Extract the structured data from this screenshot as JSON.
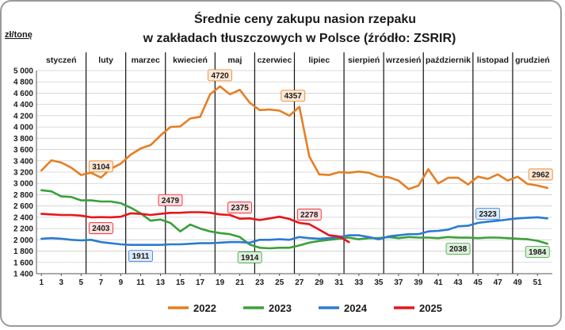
{
  "chart_data": {
    "type": "line",
    "title_line1": "Średnie ceny zakupu nasion rzepaku",
    "title_line2": "w zakładach tłuszczowych w Polsce  (źródło: ZSRIR)",
    "ylabel": "zł/tonę",
    "xlabel": "",
    "ylim": [
      1400,
      5000
    ],
    "yticks": [
      "1 400",
      "1 600",
      "1 800",
      "2 000",
      "2 200",
      "2 400",
      "2 600",
      "2 800",
      "3 000",
      "3 200",
      "3 400",
      "3 600",
      "3 800",
      "4 000",
      "4 200",
      "4 400",
      "4 600",
      "4 800",
      "5 000"
    ],
    "xlim": [
      1,
      53
    ],
    "xticks": [
      "1",
      "3",
      "5",
      "7",
      "9",
      "11",
      "13",
      "15",
      "17",
      "19",
      "21",
      "23",
      "25",
      "27",
      "29",
      "31",
      "33",
      "35",
      "37",
      "39",
      "41",
      "43",
      "45",
      "47",
      "49",
      "51"
    ],
    "months": [
      "styczeń",
      "luty",
      "marzec",
      "kwiecień",
      "maj",
      "czerwiec",
      "lipiec",
      "sierpień",
      "wrzesień",
      "październik",
      "listopad",
      "grudzień"
    ],
    "month_boundaries_week": [
      5,
      9,
      13,
      18,
      22,
      26,
      31,
      35,
      39,
      44,
      48
    ],
    "grid": true,
    "legend_position": "bottom",
    "series": [
      {
        "name": "2022",
        "color": "#e67e22",
        "x": [
          1,
          2,
          3,
          4,
          5,
          6,
          7,
          8,
          9,
          10,
          11,
          12,
          13,
          14,
          15,
          16,
          17,
          18,
          19,
          20,
          21,
          22,
          23,
          24,
          25,
          26,
          27,
          28,
          29,
          30,
          31,
          32,
          33,
          34,
          35,
          36,
          37,
          38,
          39,
          40,
          41,
          42,
          43,
          44,
          45,
          46,
          47,
          48,
          49,
          50,
          51,
          52
        ],
        "values": [
          3230,
          3410,
          3370,
          3280,
          3150,
          3190,
          3104,
          3260,
          3350,
          3510,
          3620,
          3680,
          3850,
          4000,
          4010,
          4150,
          4180,
          4580,
          4720,
          4580,
          4660,
          4430,
          4300,
          4310,
          4290,
          4200,
          4357,
          3480,
          3160,
          3150,
          3200,
          3190,
          3210,
          3190,
          3120,
          3110,
          3050,
          2900,
          2960,
          3250,
          3000,
          3100,
          3100,
          2980,
          3120,
          3080,
          3160,
          3050,
          3120,
          2990,
          2962,
          2920
        ]
      },
      {
        "name": "2023",
        "color": "#3aa03a",
        "x": [
          1,
          2,
          3,
          4,
          5,
          6,
          7,
          8,
          9,
          10,
          11,
          12,
          13,
          14,
          15,
          16,
          17,
          18,
          19,
          20,
          21,
          22,
          23,
          24,
          25,
          26,
          27,
          28,
          29,
          30,
          31,
          32,
          33,
          34,
          35,
          36,
          37,
          38,
          39,
          40,
          41,
          42,
          43,
          44,
          45,
          46,
          47,
          48,
          49,
          50,
          51,
          52
        ],
        "values": [
          2880,
          2860,
          2770,
          2760,
          2700,
          2700,
          2680,
          2680,
          2650,
          2570,
          2470,
          2340,
          2360,
          2300,
          2150,
          2270,
          2200,
          2150,
          2120,
          2100,
          2050,
          1914,
          1860,
          1850,
          1860,
          1860,
          1900,
          1950,
          1980,
          2000,
          2020,
          2040,
          2010,
          2030,
          2030,
          2050,
          2030,
          2050,
          2040,
          2040,
          2030,
          2050,
          2038,
          2040,
          2030,
          2040,
          2040,
          2030,
          2020,
          2010,
          1984,
          1930
        ]
      },
      {
        "name": "2024",
        "color": "#2b7bd1",
        "x": [
          1,
          2,
          3,
          4,
          5,
          6,
          7,
          8,
          9,
          10,
          11,
          12,
          13,
          14,
          15,
          16,
          17,
          18,
          19,
          20,
          21,
          22,
          23,
          24,
          25,
          26,
          27,
          28,
          29,
          30,
          31,
          32,
          33,
          34,
          35,
          36,
          37,
          38,
          39,
          40,
          41,
          42,
          43,
          44,
          45,
          46,
          47,
          48,
          49,
          50,
          51,
          52
        ],
        "values": [
          2020,
          2030,
          2020,
          2000,
          1990,
          2000,
          1960,
          1940,
          1920,
          1910,
          1911,
          1910,
          1910,
          1920,
          1920,
          1930,
          1940,
          1940,
          1950,
          1960,
          1960,
          1950,
          2000,
          2000,
          2010,
          2000,
          2050,
          2030,
          2020,
          2030,
          2050,
          2080,
          2080,
          2050,
          2010,
          2060,
          2080,
          2100,
          2100,
          2150,
          2160,
          2180,
          2240,
          2250,
          2300,
          2323,
          2340,
          2360,
          2380,
          2390,
          2400,
          2380
        ]
      },
      {
        "name": "2025",
        "color": "#e8141b",
        "x": [
          1,
          2,
          3,
          4,
          5,
          6,
          7,
          8,
          9,
          10,
          11,
          12,
          13,
          14,
          15,
          16,
          17,
          18,
          19,
          20,
          21,
          22,
          23,
          24,
          25,
          26,
          27,
          28,
          29,
          30,
          31,
          32
        ],
        "values": [
          2460,
          2450,
          2440,
          2440,
          2430,
          2400,
          2403,
          2400,
          2410,
          2470,
          2460,
          2440,
          2460,
          2479,
          2480,
          2490,
          2490,
          2480,
          2450,
          2440,
          2375,
          2380,
          2350,
          2380,
          2410,
          2370,
          2300,
          2278,
          2180,
          2080,
          2060,
          1960
        ]
      }
    ],
    "data_labels": [
      {
        "text": "3104",
        "series": "2022",
        "x": 7,
        "y": 3104
      },
      {
        "text": "4720",
        "series": "2022",
        "x": 19,
        "y": 4720
      },
      {
        "text": "4357",
        "series": "2022",
        "x": 27,
        "y": 4357
      },
      {
        "text": "2962",
        "series": "2022",
        "x": 51,
        "y": 2962
      },
      {
        "text": "2479",
        "series": "2025",
        "x": 14,
        "y": 2479
      },
      {
        "text": "2375",
        "series": "2025",
        "x": 21,
        "y": 2375
      },
      {
        "text": "2278",
        "series": "2025",
        "x": 28,
        "y": 2278
      },
      {
        "text": "2403",
        "series": "2025",
        "x": 7,
        "y": 2403
      },
      {
        "text": "1911",
        "series": "2024",
        "x": 11,
        "y": 1911
      },
      {
        "text": "2323",
        "series": "2024",
        "x": 46,
        "y": 2323
      },
      {
        "text": "1914",
        "series": "2023",
        "x": 22,
        "y": 1914
      },
      {
        "text": "2038",
        "series": "2023",
        "x": 43,
        "y": 2038
      },
      {
        "text": "1984",
        "series": "2023",
        "x": 51,
        "y": 1984
      }
    ]
  }
}
